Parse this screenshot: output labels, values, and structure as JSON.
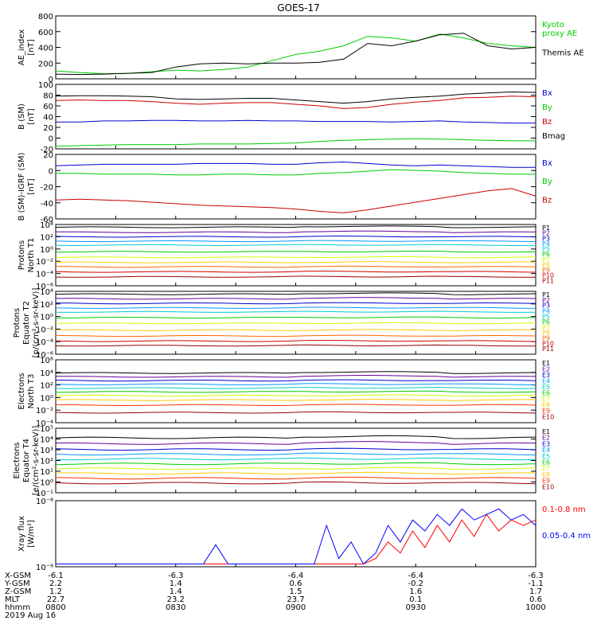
{
  "title": "GOES-17",
  "panels": [
    {
      "ylabel": "AE_index\n[nT]",
      "type": "line",
      "ticks": [
        "0",
        "200",
        "400",
        "600",
        "800"
      ],
      "legend": [
        {
          "label": "Kyoto\nproxy AE",
          "color": "#00cc00"
        },
        {
          "label": "Themis AE",
          "color": "#000000"
        }
      ]
    },
    {
      "ylabel": "B (SM)\n[nT]",
      "type": "line",
      "ticks": [
        "-20",
        "0",
        "20",
        "40",
        "60",
        "80",
        "100"
      ],
      "legend": [
        {
          "label": "Bx",
          "color": "#0000cc"
        },
        {
          "label": "By",
          "color": "#00cc00"
        },
        {
          "label": "Bz",
          "color": "#cc0000"
        },
        {
          "label": "Bmag",
          "color": "#000000"
        }
      ]
    },
    {
      "ylabel": "B (SM)-IGRF (SM)\n[nT]",
      "type": "line",
      "ticks": [
        "-60",
        "-40",
        "-20",
        "0",
        "20"
      ],
      "legend": [
        {
          "label": "Bx",
          "color": "#0000cc"
        },
        {
          "label": "By",
          "color": "#00cc00"
        },
        {
          "label": "Bz",
          "color": "#cc0000"
        }
      ]
    },
    {
      "ylabel": "Protons\nNorth T1",
      "type": "log-line",
      "ticks": [
        "10⁻⁶",
        "10⁻⁴",
        "10⁻²",
        "10⁰",
        "10²",
        "10⁴"
      ],
      "legend": [
        {
          "label": "P1",
          "color": "#000000"
        },
        {
          "label": "P2",
          "color": "#660099"
        },
        {
          "label": "P3",
          "color": "#0000cc"
        },
        {
          "label": "P4",
          "color": "#0099ff"
        },
        {
          "label": "P5",
          "color": "#00cccc"
        },
        {
          "label": "P6",
          "color": "#00cc00"
        },
        {
          "label": "P7",
          "color": "#ccff00"
        },
        {
          "label": "P8",
          "color": "#ffcc00"
        },
        {
          "label": "P9",
          "color": "#ff6600"
        },
        {
          "label": "P10",
          "color": "#cc0000"
        },
        {
          "label": "P11",
          "color": "#990000"
        }
      ]
    },
    {
      "ylabel": "Protons\nEquator T2\n[p/(cm²-s-sr-keV)]",
      "type": "log-line",
      "ticks": [
        "10⁻⁶",
        "10⁻⁴",
        "10⁻²",
        "10⁰",
        "10²",
        "10⁴"
      ],
      "legend": [
        {
          "label": "P1",
          "color": "#000000"
        },
        {
          "label": "P2",
          "color": "#660099"
        },
        {
          "label": "P3",
          "color": "#0000cc"
        },
        {
          "label": "P4",
          "color": "#0099ff"
        },
        {
          "label": "P5",
          "color": "#00cccc"
        },
        {
          "label": "P6",
          "color": "#00cc00"
        },
        {
          "label": "P7",
          "color": "#ccff00"
        },
        {
          "label": "P8",
          "color": "#ffcc00"
        },
        {
          "label": "P9",
          "color": "#ff6600"
        },
        {
          "label": "P10",
          "color": "#cc0000"
        },
        {
          "label": "P11",
          "color": "#990000"
        }
      ]
    },
    {
      "ylabel": "Electrons\nNorth T3",
      "type": "log-line",
      "ticks": [
        "10⁻⁴",
        "10⁻²",
        "10⁰",
        "10²",
        "10⁴",
        "10⁶"
      ],
      "legend": [
        {
          "label": "E1",
          "color": "#000000"
        },
        {
          "label": "E2",
          "color": "#660099"
        },
        {
          "label": "E3",
          "color": "#0000cc"
        },
        {
          "label": "E4",
          "color": "#0099ff"
        },
        {
          "label": "E5",
          "color": "#00cccc"
        },
        {
          "label": "E6",
          "color": "#00cc00"
        },
        {
          "label": "E7",
          "color": "#ccff00"
        },
        {
          "label": "E8",
          "color": "#ffcc00"
        },
        {
          "label": "E9",
          "color": "#ff3300"
        },
        {
          "label": "E10",
          "color": "#990000"
        }
      ]
    },
    {
      "ylabel": "Electrons\nEquator T4\n[e/(cm²-s-sr-keV)]",
      "type": "log-line",
      "ticks": [
        "10⁻¹",
        "10⁰",
        "10¹",
        "10²",
        "10³",
        "10⁴",
        "10⁵"
      ],
      "legend": [
        {
          "label": "E1",
          "color": "#000000"
        },
        {
          "label": "E2",
          "color": "#660099"
        },
        {
          "label": "E3",
          "color": "#0000cc"
        },
        {
          "label": "E4",
          "color": "#0099ff"
        },
        {
          "label": "E5",
          "color": "#00cccc"
        },
        {
          "label": "E6",
          "color": "#00cc00"
        },
        {
          "label": "E7",
          "color": "#ccff00"
        },
        {
          "label": "E8",
          "color": "#ffcc00"
        },
        {
          "label": "E9",
          "color": "#ff3300"
        },
        {
          "label": "E10",
          "color": "#990000"
        }
      ]
    },
    {
      "ylabel": "Xray flux\n[W/m²]",
      "type": "log-line",
      "ticks": [
        "10⁻⁹",
        "10⁻⁸"
      ],
      "legend": [
        {
          "label": "0.1-0.8 nm",
          "color": "#ff0000"
        },
        {
          "label": "0.05-0.4 nm",
          "color": "#0000ff"
        }
      ]
    }
  ],
  "orbit_table": {
    "row_labels": [
      "X-GSM",
      "Y-GSM",
      "Z-GSM",
      "MLT",
      "hhmm",
      "2019 Aug 16"
    ],
    "columns": [
      [
        "-6.1",
        "2.2",
        "1.2",
        "22.7",
        "0800"
      ],
      [
        "-6.3",
        "1.4",
        "1.4",
        "23.2",
        "0830"
      ],
      [
        "-6.4",
        "0.6",
        "1.5",
        "23.7",
        "0900"
      ],
      [
        "-6.4",
        "-0.2",
        "1.6",
        "0.1",
        "0930"
      ],
      [
        "-6.3",
        "-1.1",
        "1.7",
        "0.6",
        "1000"
      ]
    ]
  },
  "chart_data": {
    "type": "line",
    "title": "GOES-17",
    "x_axis_times": [
      "0800",
      "0830",
      "0900",
      "0930",
      "1000"
    ],
    "panels": [
      {
        "name": "AE_index [nT]",
        "ylim": [
          0,
          800
        ],
        "series": [
          {
            "name": "Kyoto proxy AE",
            "values": [
              100,
              80,
              65,
              70,
              90,
              110,
              100,
              120,
              150,
              230,
              310,
              350,
              420,
              540,
              520,
              480,
              570,
              520,
              450,
              420,
              400
            ]
          },
          {
            "name": "Themis AE",
            "values": [
              60,
              55,
              60,
              70,
              80,
              150,
              190,
              200,
              190,
              200,
              200,
              210,
              250,
              450,
              420,
              480,
              560,
              580,
              420,
              380,
              400
            ]
          }
        ]
      },
      {
        "name": "B (SM) [nT]",
        "ylim": [
          -20,
          100
        ],
        "series": [
          {
            "name": "Bx",
            "values": [
              30,
              30,
              32,
              32,
              33,
              33,
              32,
              32,
              33,
              32,
              32,
              31,
              31,
              31,
              30,
              31,
              32,
              30,
              29,
              28,
              28
            ]
          },
          {
            "name": "By",
            "values": [
              -15,
              -14,
              -13,
              -12,
              -12,
              -12,
              -11,
              -11,
              -11,
              -10,
              -9,
              -6,
              -4,
              -3,
              -2,
              -1,
              -2,
              -3,
              -4,
              -5,
              -5
            ]
          },
          {
            "name": "Bz",
            "values": [
              70,
              71,
              70,
              70,
              68,
              65,
              63,
              65,
              66,
              66,
              63,
              60,
              55,
              57,
              63,
              67,
              70,
              75,
              76,
              78,
              77
            ]
          },
          {
            "name": "Bmag",
            "values": [
              78,
              79,
              79,
              78,
              77,
              73,
              72,
              73,
              74,
              74,
              71,
              68,
              65,
              68,
              73,
              76,
              78,
              82,
              84,
              86,
              85
            ]
          }
        ]
      },
      {
        "name": "B (SM)-IGRF (SM) [nT]",
        "ylim": [
          -60,
          25
        ],
        "series": [
          {
            "name": "Bx",
            "values": [
              10,
              11,
              12,
              12,
              12,
              12,
              13,
              13,
              13,
              12,
              12,
              14,
              15,
              13,
              11,
              10,
              11,
              10,
              9,
              8,
              8
            ]
          },
          {
            "name": "By",
            "values": [
              0,
              0,
              -1,
              -1,
              -1,
              -2,
              -2,
              -1,
              -1,
              -2,
              -2,
              0,
              1,
              3,
              5,
              4,
              3,
              1,
              0,
              -1,
              -1
            ]
          },
          {
            "name": "Bz",
            "values": [
              -35,
              -34,
              -35,
              -36,
              -38,
              -40,
              -42,
              -43,
              -44,
              -45,
              -47,
              -50,
              -52,
              -48,
              -43,
              -38,
              -33,
              -28,
              -23,
              -20,
              -30
            ]
          }
        ]
      },
      {
        "name": "Protons North T1",
        "log": true,
        "ylim_log10": [
          -7,
          4
        ],
        "series_log10": [
          {
            "name": "P1",
            "level": 3.5
          },
          {
            "name": "P2",
            "level": 2.6
          },
          {
            "name": "P3",
            "level": 1.8
          },
          {
            "name": "P4",
            "level": 1.0
          },
          {
            "name": "P5",
            "level": 0.3
          },
          {
            "name": "P6",
            "level": -0.9
          },
          {
            "name": "P7",
            "level": -1.9
          },
          {
            "name": "P8",
            "level": -2.8
          },
          {
            "name": "P9",
            "level": -3.6
          },
          {
            "name": "P10",
            "level": -4.5
          },
          {
            "name": "P11",
            "level": -5.4
          }
        ]
      },
      {
        "name": "Protons Equator T2 [p/(cm²-s-sr-keV)]",
        "log": true,
        "ylim_log10": [
          -7,
          4
        ],
        "series_log10": [
          {
            "name": "P1",
            "level": 3.5
          },
          {
            "name": "P2",
            "level": 2.7
          },
          {
            "name": "P3",
            "level": 1.9
          },
          {
            "name": "P4",
            "level": 1.1
          },
          {
            "name": "P5",
            "level": 0.4
          },
          {
            "name": "P6",
            "level": -0.6
          },
          {
            "name": "P7",
            "level": -1.6
          },
          {
            "name": "P8",
            "level": -2.8
          },
          {
            "name": "P9",
            "level": -3.8
          },
          {
            "name": "P10",
            "level": -4.7
          },
          {
            "name": "P11",
            "level": -5.5
          }
        ]
      },
      {
        "name": "Electrons North T3",
        "log": true,
        "ylim_log10": [
          -4,
          6
        ],
        "series_log10": [
          {
            "name": "E1",
            "level": 3.9
          },
          {
            "name": "E2",
            "level": 3.3
          },
          {
            "name": "E3",
            "level": 2.7
          },
          {
            "name": "E4",
            "level": 2.1
          },
          {
            "name": "E5",
            "level": 1.5
          },
          {
            "name": "E6",
            "level": 0.9
          },
          {
            "name": "E7",
            "level": 0.3
          },
          {
            "name": "E8",
            "level": -0.4
          },
          {
            "name": "E9",
            "level": -1.2
          },
          {
            "name": "E10",
            "level": -2.4
          }
        ]
      },
      {
        "name": "Electrons Equator T4 [e/(cm²-s-sr-keV)]",
        "log": true,
        "ylim_log10": [
          -1.2,
          5.5
        ],
        "series_log10": [
          {
            "name": "E1",
            "level": 4.5
          },
          {
            "name": "E2",
            "level": 3.9
          },
          {
            "name": "E3",
            "level": 3.3
          },
          {
            "name": "E4",
            "level": 2.8
          },
          {
            "name": "E5",
            "level": 2.3
          },
          {
            "name": "E6",
            "level": 1.8
          },
          {
            "name": "E7",
            "level": 1.3
          },
          {
            "name": "E8",
            "level": 0.8
          },
          {
            "name": "E9",
            "level": 0.3
          },
          {
            "name": "E10",
            "level": -0.2
          }
        ]
      },
      {
        "name": "Xray flux [W/m²]",
        "log": true,
        "ylim_log10": [
          -9.05,
          -7.85
        ],
        "series": [
          {
            "name": "0.1-0.8 nm",
            "values": [
              -9,
              -9,
              -9,
              -9,
              -9,
              -9,
              -9,
              -9,
              -9,
              -9,
              -9,
              -9,
              -9,
              -9,
              -9,
              -9,
              -9,
              -9,
              -9,
              -9,
              -9,
              -9,
              -9,
              -9,
              -9,
              -9,
              -8.9,
              -8.6,
              -8.8,
              -8.4,
              -8.7,
              -8.3,
              -8.6,
              -8.2,
              -8.5,
              -8.1,
              -8.4,
              -8.2,
              -8.3,
              -8.2
            ]
          },
          {
            "name": "0.05-0.4 nm",
            "values": [
              -9,
              -9,
              -9,
              -9,
              -9,
              -9,
              -9,
              -9,
              -9,
              -9,
              -9,
              -9,
              -9,
              -8.65,
              -9,
              -9,
              -9,
              -9,
              -9,
              -9,
              -9,
              -9,
              -8.3,
              -8.9,
              -8.6,
              -9,
              -8.8,
              -8.3,
              -8.6,
              -8.2,
              -8.4,
              -8.1,
              -8.3,
              -8.0,
              -8.2,
              -8.1,
              -8.0,
              -8.2,
              -8.1,
              -8.3
            ]
          }
        ]
      }
    ]
  }
}
